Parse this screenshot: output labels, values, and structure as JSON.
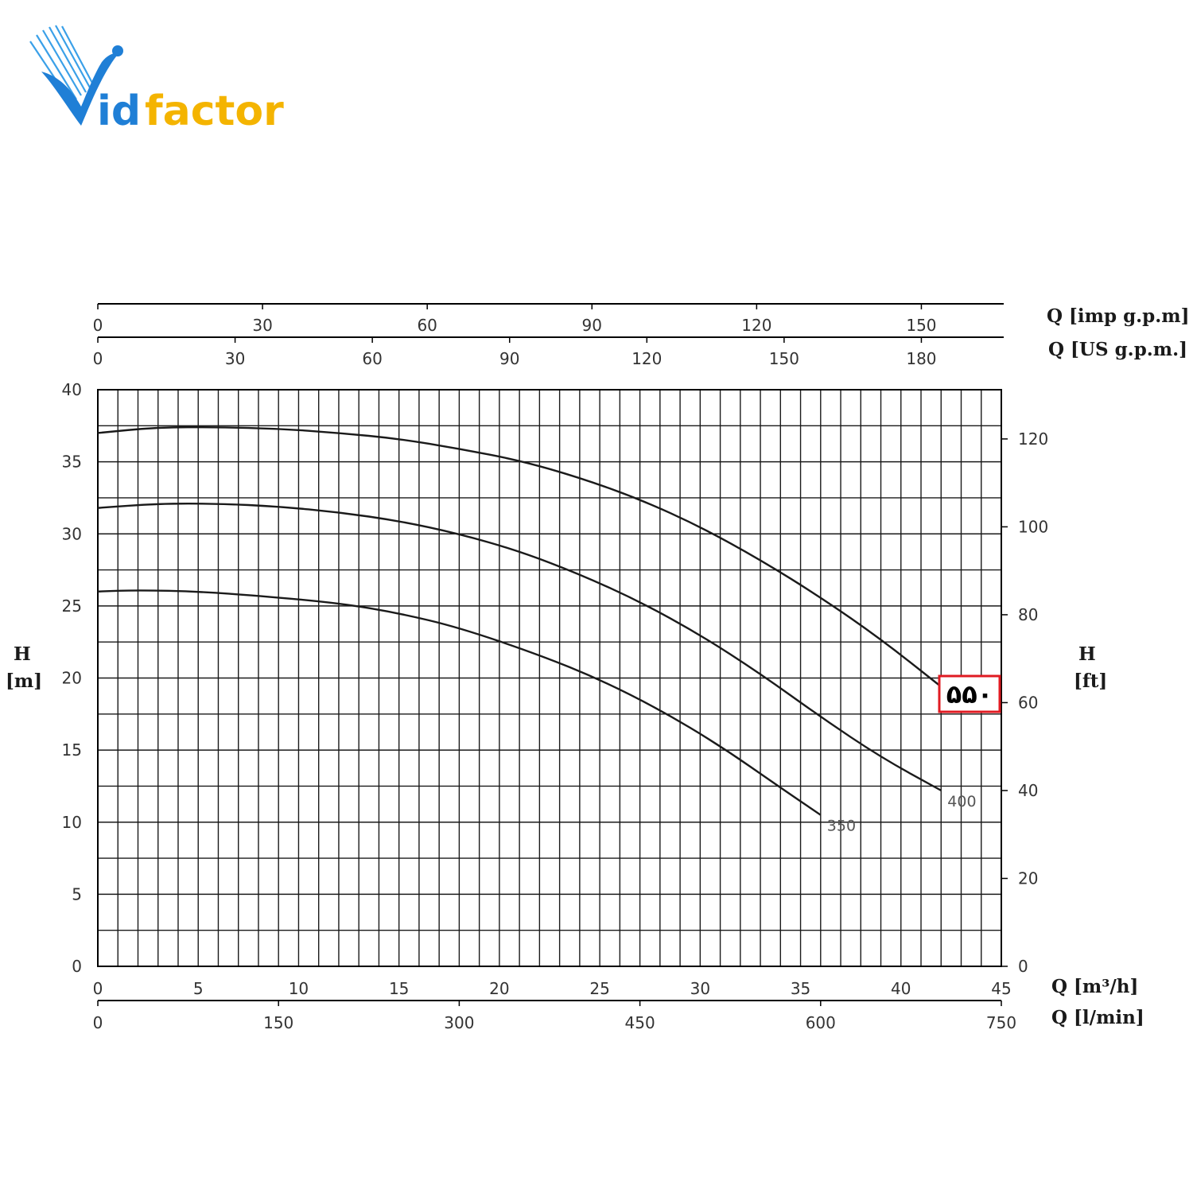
{
  "logo": {
    "text_i": "id",
    "text_f": "factor",
    "colors": {
      "blue": "#1f7fd6",
      "gold": "#f4b400"
    }
  },
  "chart_data": {
    "type": "line",
    "x_unit": "Q [m³/h]",
    "y_unit": "H [m]",
    "xlim": [
      0,
      45
    ],
    "ylim": [
      0,
      40
    ],
    "grid": true,
    "series": [
      {
        "name": "350",
        "x": [
          0,
          2,
          5,
          8,
          12,
          15,
          18,
          22,
          25,
          28,
          31,
          34,
          36
        ],
        "y": [
          26,
          26.1,
          26,
          25.7,
          25.2,
          24.5,
          23.5,
          21.6,
          19.9,
          17.8,
          15.3,
          12.4,
          10.5
        ]
      },
      {
        "name": "400",
        "x": [
          0,
          3,
          6,
          9,
          12,
          15,
          18,
          21,
          24,
          27,
          30,
          33,
          36,
          39,
          42
        ],
        "y": [
          31.8,
          32.1,
          32.1,
          31.9,
          31.5,
          30.9,
          30,
          28.8,
          27.2,
          25.3,
          23,
          20.3,
          17.3,
          14.5,
          12.2
        ]
      },
      {
        "name": "۵۵۰",
        "x": [
          0,
          3,
          6,
          9,
          12,
          15,
          18,
          21,
          24,
          27,
          30,
          33,
          36,
          39,
          42
        ],
        "y": [
          37,
          37.4,
          37.4,
          37.3,
          37,
          36.6,
          35.9,
          35.1,
          33.9,
          32.4,
          30.5,
          28.2,
          25.6,
          22.7,
          19.4
        ]
      }
    ],
    "axes": {
      "top_imp": {
        "label": "Q [imp g.p.m]",
        "ticks": [
          "0",
          "30",
          "60",
          "90",
          "120",
          "150"
        ],
        "max": 165
      },
      "top_us": {
        "label": "Q [US g.p.m.]",
        "ticks": [
          "0",
          "30",
          "60",
          "90",
          "120",
          "150",
          "180"
        ],
        "max": 198
      },
      "left": {
        "label_top": "H",
        "label_bottom": "[m]",
        "ticks": [
          "0",
          "5",
          "10",
          "15",
          "20",
          "25",
          "30",
          "35",
          "40"
        ]
      },
      "right": {
        "label_top": "H",
        "label_bottom": "[ft]",
        "ticks": [
          "0",
          "20",
          "40",
          "60",
          "80",
          "100",
          "120"
        ],
        "max_ft": 131.2
      },
      "bottom_m3h": {
        "label": "Q [m³/h]",
        "ticks": [
          "0",
          "5",
          "10",
          "15",
          "20",
          "25",
          "30",
          "35",
          "40",
          "45"
        ]
      },
      "bottom_lmin": {
        "label": "Q [l/min]",
        "ticks": [
          "0",
          "150",
          "300",
          "450",
          "600",
          "750"
        ],
        "max": 750
      }
    },
    "highlight": {
      "text": "۵۵۰",
      "color": "#e01b22"
    }
  }
}
